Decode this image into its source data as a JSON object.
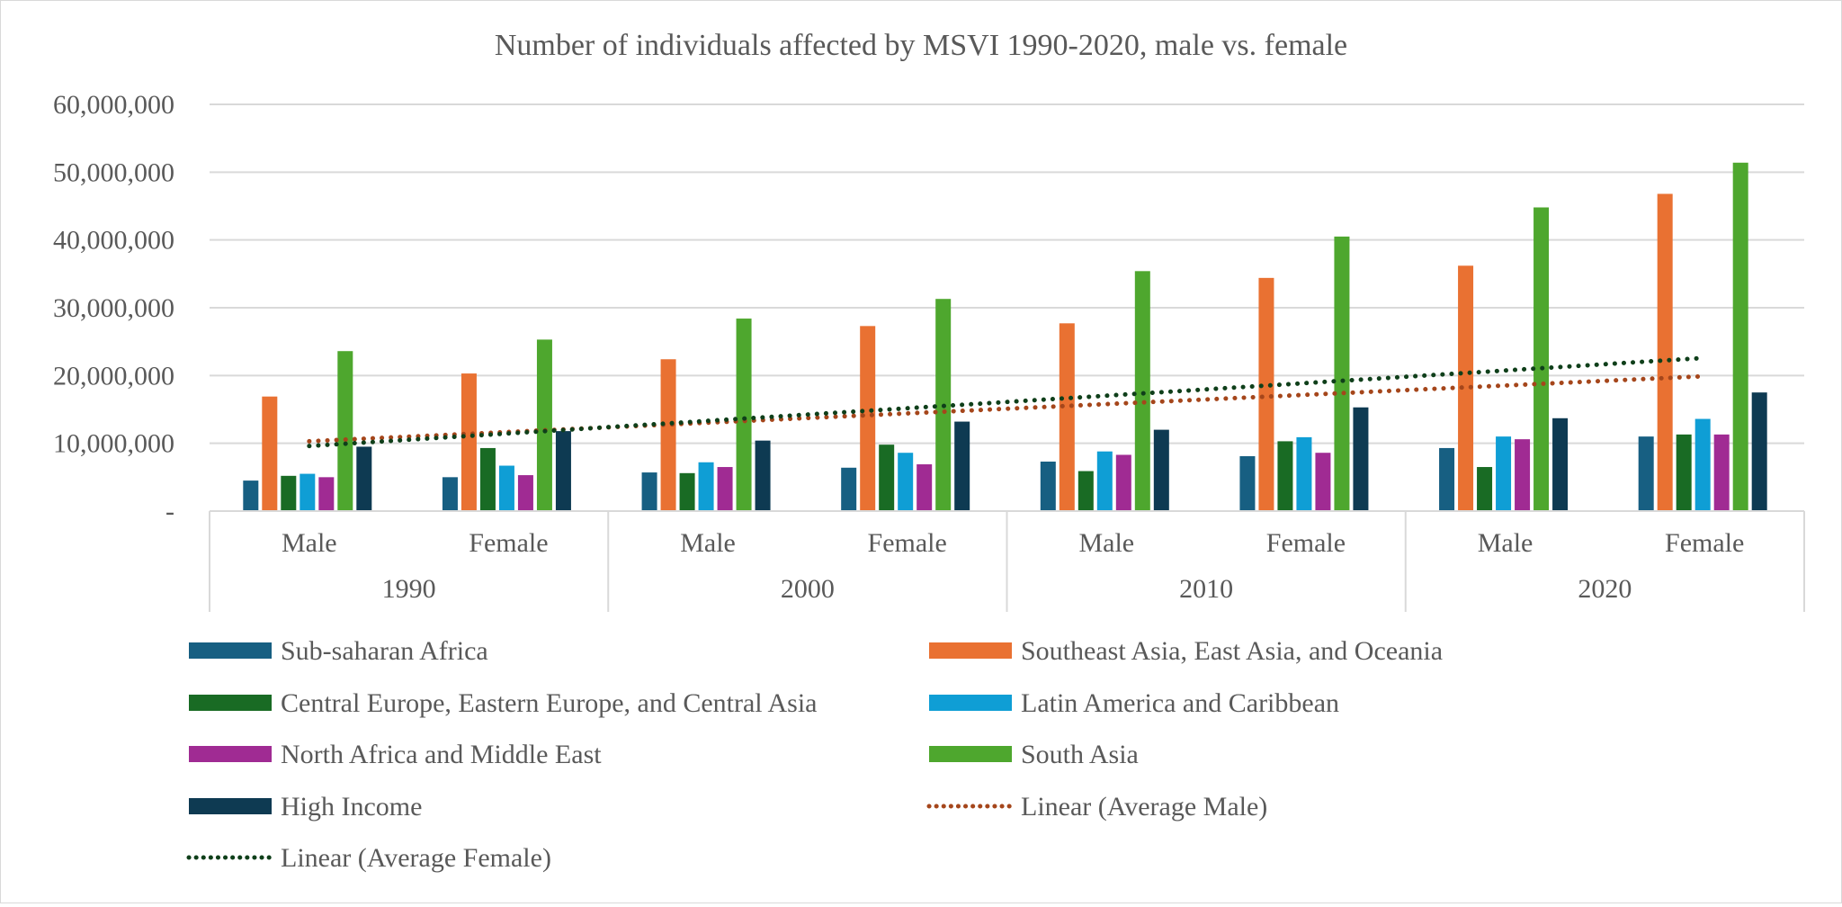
{
  "chart_data": {
    "type": "bar",
    "title": "Number of individuals affected by MSVI 1990-2020, male vs. female",
    "xlabel": "",
    "ylabel": "",
    "ylim": [
      0,
      60000000
    ],
    "y_ticks": [
      "-",
      "10,000,000",
      "20,000,000",
      "30,000,000",
      "40,000,000",
      "50,000,000",
      "60,000,000"
    ],
    "grid": true,
    "legend_position": "bottom",
    "categories": [
      {
        "year": "1990",
        "sex": "Male"
      },
      {
        "year": "1990",
        "sex": "Female"
      },
      {
        "year": "2000",
        "sex": "Male"
      },
      {
        "year": "2000",
        "sex": "Female"
      },
      {
        "year": "2010",
        "sex": "Male"
      },
      {
        "year": "2010",
        "sex": "Female"
      },
      {
        "year": "2020",
        "sex": "Male"
      },
      {
        "year": "2020",
        "sex": "Female"
      }
    ],
    "years": [
      "1990",
      "2000",
      "2010",
      "2020"
    ],
    "series": [
      {
        "name": "Sub-saharan Africa",
        "color": "#175f82",
        "values": [
          4500000,
          5000000,
          5700000,
          6400000,
          7300000,
          8100000,
          9300000,
          11000000
        ]
      },
      {
        "name": "Southeast Asia, East Asia, and Oceania",
        "color": "#e97132",
        "values": [
          16900000,
          20300000,
          22400000,
          27300000,
          27700000,
          34400000,
          36200000,
          46800000
        ]
      },
      {
        "name": "Central Europe, Eastern Europe, and Central Asia",
        "color": "#196b24",
        "values": [
          5200000,
          9300000,
          5600000,
          9800000,
          5900000,
          10300000,
          6500000,
          11300000
        ]
      },
      {
        "name": "Latin America and Caribbean",
        "color": "#0f9ed5",
        "values": [
          5500000,
          6700000,
          7200000,
          8600000,
          8800000,
          10900000,
          11000000,
          13600000
        ]
      },
      {
        "name": "North Africa and Middle East",
        "color": "#a02b93",
        "values": [
          5000000,
          5300000,
          6500000,
          6900000,
          8300000,
          8600000,
          10600000,
          11300000
        ]
      },
      {
        "name": "South Asia",
        "color": "#4ea72e",
        "values": [
          23600000,
          25300000,
          28400000,
          31300000,
          35400000,
          40500000,
          44800000,
          51400000
        ]
      },
      {
        "name": "High Income",
        "color": "#0e3a52",
        "values": [
          9500000,
          11800000,
          10400000,
          13200000,
          12000000,
          15300000,
          13700000,
          17500000
        ]
      }
    ],
    "trendlines": [
      {
        "name": "Linear (Average Male)",
        "color": "#a5461b",
        "style": "dotted",
        "start": 10300000,
        "end": 19900000
      },
      {
        "name": "Linear (Average Female)",
        "color": "#0f3f1a",
        "style": "dotted",
        "start": 9600000,
        "end": 22600000
      }
    ]
  }
}
